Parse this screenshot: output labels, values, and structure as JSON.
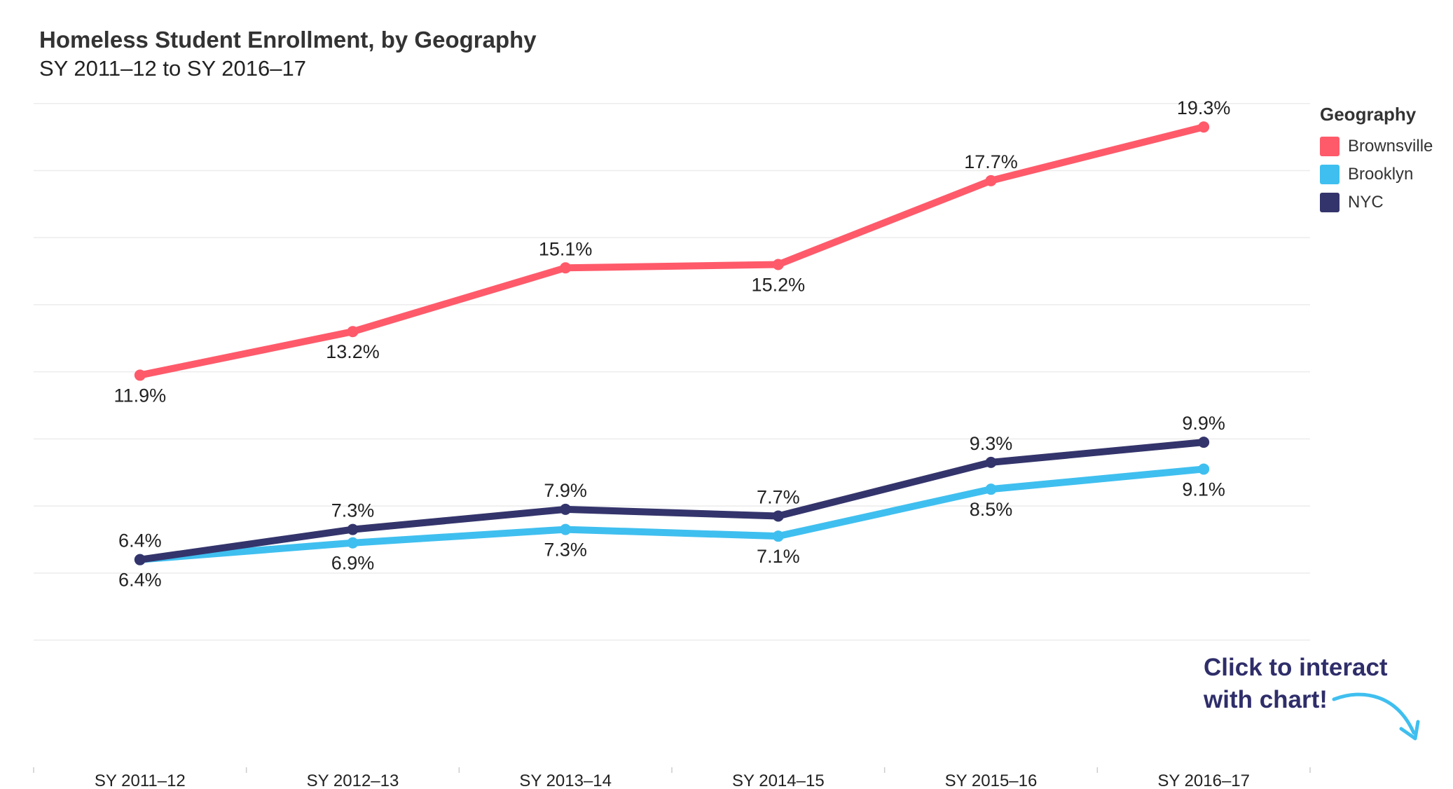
{
  "chart_data": {
    "type": "line",
    "title": "Homeless Student Enrollment, by Geography",
    "subtitle": "SY 2011–12 to SY 2016–17",
    "xlabel": "",
    "ylabel": "",
    "categories": [
      "SY 2011–12",
      "SY 2012–13",
      "SY 2013–14",
      "SY 2014–15",
      "SY 2015–16",
      "SY 2016–17"
    ],
    "ylim": [
      0,
      22
    ],
    "grid": true,
    "legend_position": "right",
    "legend_title": "Geography",
    "series": [
      {
        "name": "Brownsville",
        "color": "#ff5a6a",
        "values": [
          11.9,
          13.2,
          15.1,
          15.2,
          17.7,
          19.3
        ],
        "labels": [
          "11.9%",
          "13.2%",
          "15.1%",
          "15.2%",
          "17.7%",
          "19.3%"
        ],
        "label_pos": [
          "below",
          "below",
          "above",
          "below",
          "above",
          "above"
        ]
      },
      {
        "name": "Brooklyn",
        "color": "#3fbfef",
        "values": [
          6.4,
          6.9,
          7.3,
          7.1,
          8.5,
          9.1
        ],
        "labels": [
          "6.4%",
          "6.9%",
          "7.3%",
          "7.1%",
          "8.5%",
          "9.1%"
        ],
        "label_pos": [
          "below",
          "below",
          "below",
          "below",
          "below",
          "below"
        ]
      },
      {
        "name": "NYC",
        "color": "#34346c",
        "values": [
          6.4,
          7.3,
          7.9,
          7.7,
          9.3,
          9.9
        ],
        "labels": [
          "6.4%",
          "7.3%",
          "7.9%",
          "7.7%",
          "9.3%",
          "9.9%"
        ],
        "label_pos": [
          "above",
          "above",
          "above",
          "above",
          "above",
          "above"
        ]
      }
    ]
  },
  "cta": {
    "line1": "Click to interact",
    "line2": "with chart!"
  }
}
